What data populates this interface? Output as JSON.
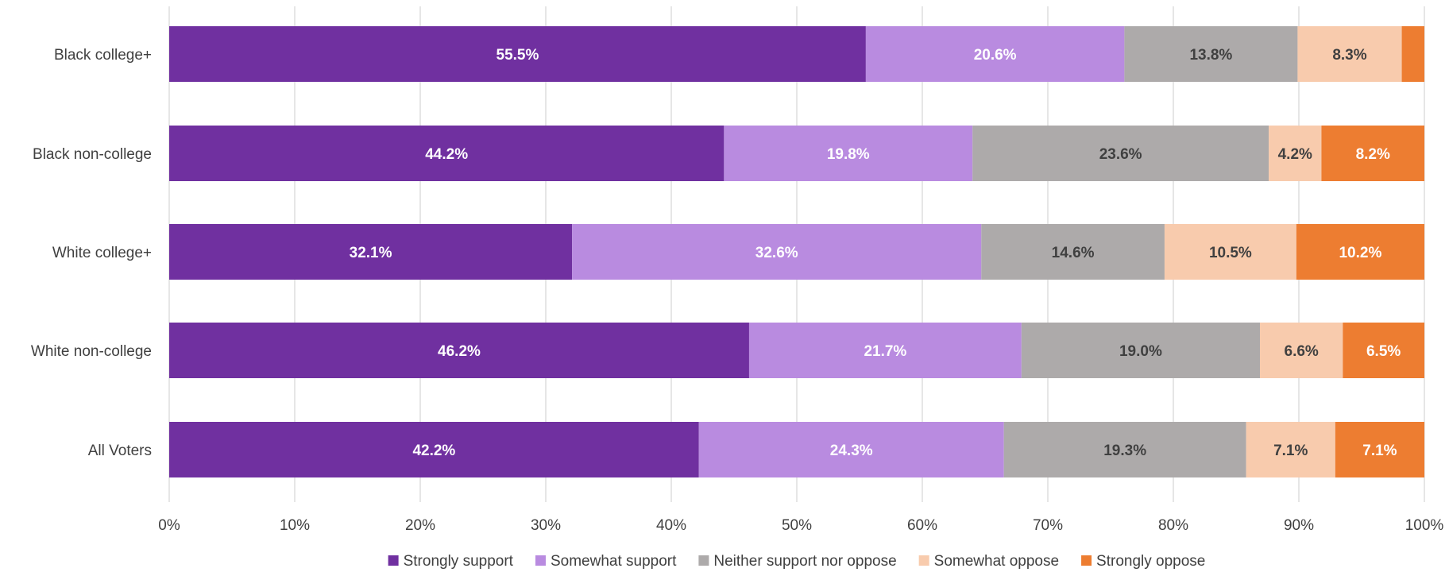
{
  "chart_data": {
    "type": "bar",
    "orientation": "horizontal",
    "stacked": true,
    "categories": [
      "Black college+",
      "Black non-college",
      "White college+",
      "White non-college",
      "All Voters"
    ],
    "series": [
      {
        "name": "Strongly support",
        "color": "#7030A0",
        "label_color": "#ffffff",
        "values": [
          55.5,
          44.2,
          32.1,
          46.2,
          42.2
        ],
        "labels": [
          "55.5%",
          "44.2%",
          "32.1%",
          "46.2%",
          "42.2%"
        ]
      },
      {
        "name": "Somewhat support",
        "color": "#B98BE0",
        "label_color": "#ffffff",
        "values": [
          20.6,
          19.8,
          32.6,
          21.7,
          24.3
        ],
        "labels": [
          "20.6%",
          "19.8%",
          "32.6%",
          "21.7%",
          "24.3%"
        ]
      },
      {
        "name": "Neither support nor oppose",
        "color": "#ADAAAA",
        "label_color": "#404040",
        "values": [
          13.8,
          23.6,
          14.6,
          19.0,
          19.3
        ],
        "labels": [
          "13.8%",
          "23.6%",
          "14.6%",
          "19.0%",
          "19.3%"
        ]
      },
      {
        "name": "Somewhat oppose",
        "color": "#F8CBAD",
        "label_color": "#404040",
        "values": [
          8.3,
          4.2,
          10.5,
          6.6,
          7.1
        ],
        "labels": [
          "8.3%",
          "4.2%",
          "10.5%",
          "6.6%",
          "7.1%"
        ]
      },
      {
        "name": "Strongly oppose",
        "color": "#ED7D31",
        "label_color": "#ffffff",
        "values": [
          1.8,
          8.2,
          10.2,
          6.5,
          7.1
        ],
        "labels": [
          "",
          "8.2%",
          "10.2%",
          "6.5%",
          "7.1%"
        ]
      }
    ],
    "x_ticks": [
      "0%",
      "10%",
      "20%",
      "30%",
      "40%",
      "50%",
      "60%",
      "70%",
      "80%",
      "90%",
      "100%"
    ],
    "xlim": [
      0,
      100
    ],
    "grid": true,
    "legend_position": "bottom"
  }
}
